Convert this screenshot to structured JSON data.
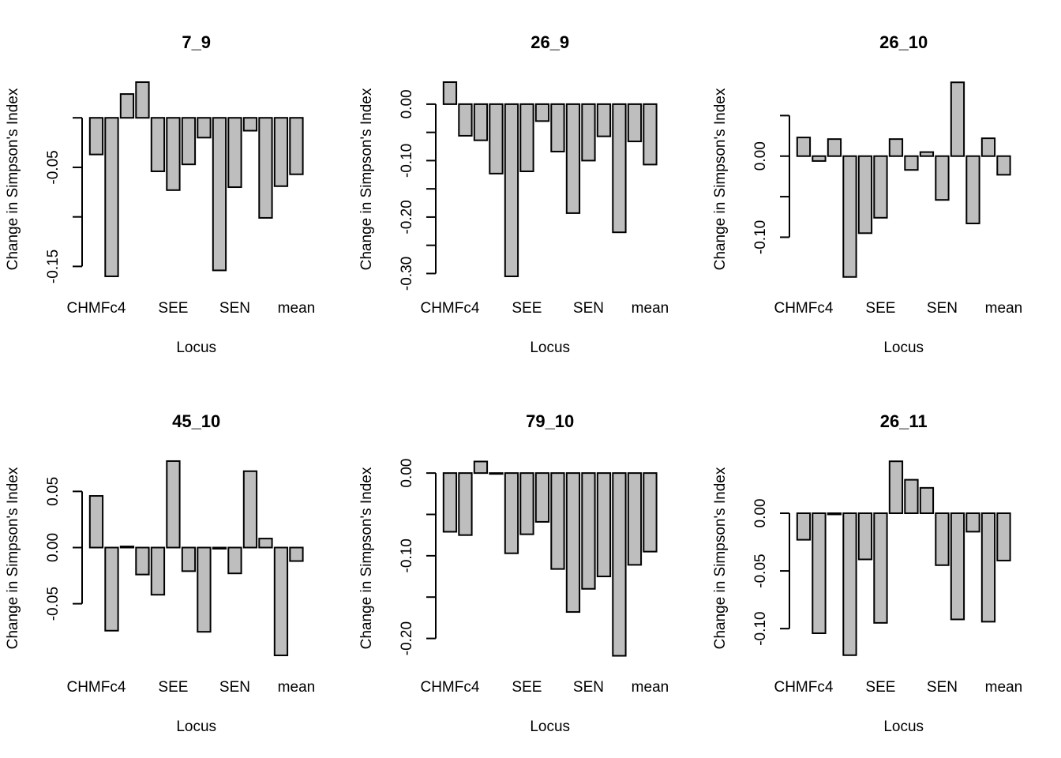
{
  "chart_data": [
    {
      "type": "bar",
      "title": "7_9",
      "xlabel": "Locus",
      "ylabel": "Change in Simpson's Index",
      "visible_category_labels": [
        {
          "index": 0,
          "label": "CHMFc4"
        },
        {
          "index": 5,
          "label": "SEE"
        },
        {
          "index": 9,
          "label": "SEN"
        },
        {
          "index": 13,
          "label": "mean"
        }
      ],
      "values": [
        -0.037,
        -0.16,
        0.024,
        0.036,
        -0.054,
        -0.073,
        -0.047,
        -0.02,
        -0.154,
        -0.07,
        -0.013,
        -0.101,
        -0.069,
        -0.057
      ],
      "ylim": [
        -0.168,
        0.044
      ],
      "yticks": [
        0.0,
        -0.05,
        -0.1,
        -0.15
      ],
      "ytick_labels": [
        {
          "value": -0.05,
          "label": "-0.05"
        },
        {
          "value": -0.15,
          "label": "-0.15"
        }
      ],
      "grid": false,
      "legend": "none"
    },
    {
      "type": "bar",
      "title": "26_9",
      "xlabel": "Locus",
      "ylabel": "Change in Simpson's Index",
      "visible_category_labels": [
        {
          "index": 0,
          "label": "CHMFc4"
        },
        {
          "index": 5,
          "label": "SEE"
        },
        {
          "index": 9,
          "label": "SEN"
        },
        {
          "index": 13,
          "label": "mean"
        }
      ],
      "values": [
        0.039,
        -0.056,
        -0.064,
        -0.123,
        -0.305,
        -0.119,
        -0.03,
        -0.084,
        -0.193,
        -0.1,
        -0.057,
        -0.227,
        -0.066,
        -0.107
      ],
      "ylim": [
        -0.319,
        0.053
      ],
      "yticks": [
        0.0,
        -0.05,
        -0.1,
        -0.15,
        -0.2,
        -0.25,
        -0.3
      ],
      "ytick_labels": [
        {
          "value": 0.0,
          "label": "0.00"
        },
        {
          "value": -0.1,
          "label": "-0.10"
        },
        {
          "value": -0.2,
          "label": "-0.20"
        },
        {
          "value": -0.3,
          "label": "-0.30"
        }
      ],
      "grid": false,
      "legend": "none"
    },
    {
      "type": "bar",
      "title": "26_10",
      "xlabel": "Locus",
      "ylabel": "Change in Simpson's Index",
      "visible_category_labels": [
        {
          "index": 0,
          "label": "CHMFc4"
        },
        {
          "index": 5,
          "label": "SEE"
        },
        {
          "index": 9,
          "label": "SEN"
        },
        {
          "index": 13,
          "label": "mean"
        }
      ],
      "values": [
        0.023,
        -0.006,
        0.021,
        -0.149,
        -0.095,
        -0.076,
        0.021,
        -0.017,
        0.005,
        -0.054,
        0.091,
        -0.083,
        0.022,
        -0.023
      ],
      "ylim": [
        -0.158,
        0.101
      ],
      "yticks": [
        0.05,
        0.0,
        -0.05,
        -0.1
      ],
      "ytick_labels": [
        {
          "value": 0.0,
          "label": "0.00"
        },
        {
          "value": -0.1,
          "label": "-0.10"
        }
      ],
      "grid": false,
      "legend": "none"
    },
    {
      "type": "bar",
      "title": "45_10",
      "xlabel": "Locus",
      "ylabel": "Change in Simpson's Index",
      "visible_category_labels": [
        {
          "index": 0,
          "label": "CHMFc4"
        },
        {
          "index": 5,
          "label": "SEE"
        },
        {
          "index": 9,
          "label": "SEN"
        },
        {
          "index": 13,
          "label": "mean"
        }
      ],
      "values": [
        0.046,
        -0.074,
        0.001,
        -0.024,
        -0.042,
        0.077,
        -0.021,
        -0.075,
        -0.001,
        -0.023,
        0.068,
        0.008,
        -0.096,
        -0.012
      ],
      "ylim": [
        -0.103,
        0.084
      ],
      "yticks": [
        0.05,
        0.0,
        -0.05
      ],
      "ytick_labels": [
        {
          "value": 0.05,
          "label": "0.05"
        },
        {
          "value": 0.0,
          "label": "0.00"
        },
        {
          "value": -0.05,
          "label": "-0.05"
        }
      ],
      "grid": false,
      "legend": "none"
    },
    {
      "type": "bar",
      "title": "79_10",
      "xlabel": "Locus",
      "ylabel": "Change in Simpson's Index",
      "visible_category_labels": [
        {
          "index": 0,
          "label": "CHMFc4"
        },
        {
          "index": 5,
          "label": "SEE"
        },
        {
          "index": 9,
          "label": "SEN"
        },
        {
          "index": 13,
          "label": "mean"
        }
      ],
      "values": [
        -0.071,
        -0.075,
        0.014,
        -0.001,
        -0.097,
        -0.074,
        -0.059,
        -0.116,
        -0.168,
        -0.14,
        -0.125,
        -0.221,
        -0.111,
        -0.095
      ],
      "ylim": [
        -0.23,
        0.024
      ],
      "yticks": [
        0.0,
        -0.05,
        -0.1,
        -0.15,
        -0.2
      ],
      "ytick_labels": [
        {
          "value": 0.0,
          "label": "0.00"
        },
        {
          "value": -0.1,
          "label": "-0.10"
        },
        {
          "value": -0.2,
          "label": "-0.20"
        }
      ],
      "grid": false,
      "legend": "none"
    },
    {
      "type": "bar",
      "title": "26_11",
      "xlabel": "Locus",
      "ylabel": "Change in Simpson's Index",
      "visible_category_labels": [
        {
          "index": 0,
          "label": "CHMFc4"
        },
        {
          "index": 5,
          "label": "SEE"
        },
        {
          "index": 9,
          "label": "SEN"
        },
        {
          "index": 13,
          "label": "mean"
        }
      ],
      "values": [
        -0.023,
        -0.104,
        -0.001,
        -0.123,
        -0.04,
        -0.095,
        0.045,
        0.029,
        0.022,
        -0.045,
        -0.092,
        -0.016,
        -0.094,
        -0.041
      ],
      "ylim": [
        -0.13,
        0.052
      ],
      "yticks": [
        0.0,
        -0.05,
        -0.1
      ],
      "ytick_labels": [
        {
          "value": 0.0,
          "label": "0.00"
        },
        {
          "value": -0.05,
          "label": "-0.05"
        },
        {
          "value": -0.1,
          "label": "-0.10"
        }
      ],
      "grid": false,
      "legend": "none"
    }
  ],
  "colors": {
    "bar_fill": "#bebebe",
    "bar_stroke": "#000000",
    "background": "#ffffff"
  }
}
